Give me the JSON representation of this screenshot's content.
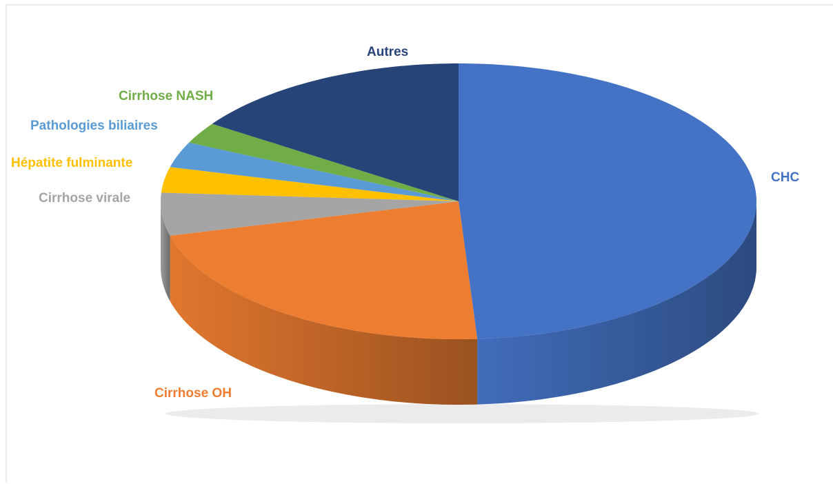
{
  "chart_data": {
    "type": "pie3d",
    "categories": [
      "CHC",
      "Cirrhose OH",
      "Cirrhose virale",
      "Hépatite fulminante",
      "Pathologies biliaires",
      "Cirrhose NASH",
      "Autres"
    ],
    "values": [
      49,
      22,
      5,
      3,
      3,
      2.5,
      15.5
    ],
    "colors": [
      "#4472c4",
      "#ed7d31",
      "#a5a5a5",
      "#ffc000",
      "#5b9bd5",
      "#70ad47",
      "#264478"
    ]
  }
}
